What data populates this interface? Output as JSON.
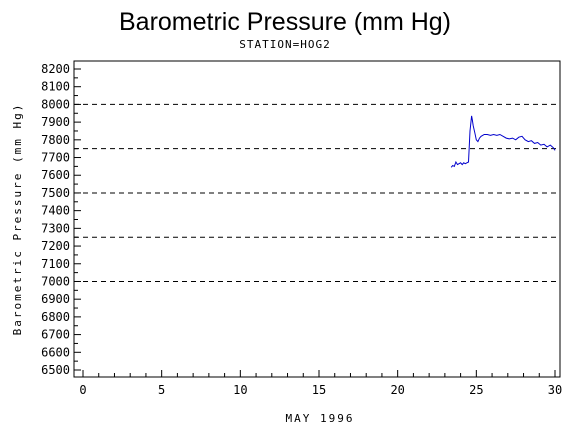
{
  "chart_data": {
    "type": "line",
    "title": "Barometric Pressure (mm Hg)",
    "subtitle": "STATION=HOG2",
    "xlabel": "MAY 1996",
    "ylabel": "Barometric Pressure (mm Hg)",
    "xlim": [
      0,
      30
    ],
    "ylim": [
      6500,
      8200
    ],
    "x_ticks": [
      0,
      5,
      10,
      15,
      20,
      25,
      30
    ],
    "y_ticks": [
      6500,
      6600,
      6700,
      6800,
      6900,
      7000,
      7100,
      7200,
      7300,
      7400,
      7500,
      7600,
      7700,
      7800,
      7900,
      8000,
      8100,
      8200
    ],
    "reference_lines": [
      7000,
      7250,
      7500,
      7750,
      8000
    ],
    "grid": false,
    "colors": {
      "series": "#0000cc",
      "axis": "#000000",
      "reference": "#000000"
    },
    "series": [
      {
        "x": [
          23.4,
          23.5,
          23.6,
          23.7,
          23.8,
          23.9,
          24.0,
          24.1,
          24.2,
          24.3,
          24.4,
          24.5,
          24.6,
          24.7,
          24.75,
          24.8,
          24.9,
          25.0,
          25.1,
          25.2,
          25.3,
          25.4,
          25.5,
          25.7,
          25.9,
          26.1,
          26.3,
          26.5,
          26.7,
          26.9,
          27.1,
          27.3,
          27.5,
          27.7,
          27.9,
          28.1,
          28.3,
          28.5,
          28.7,
          28.9,
          29.1,
          29.3,
          29.5,
          29.7,
          29.9,
          30.0
        ],
        "y": [
          7645,
          7655,
          7650,
          7675,
          7660,
          7665,
          7670,
          7660,
          7670,
          7665,
          7670,
          7675,
          7850,
          7935,
          7910,
          7880,
          7840,
          7800,
          7790,
          7810,
          7820,
          7825,
          7830,
          7830,
          7825,
          7830,
          7825,
          7830,
          7820,
          7810,
          7805,
          7810,
          7800,
          7815,
          7820,
          7800,
          7790,
          7795,
          7780,
          7785,
          7770,
          7775,
          7760,
          7770,
          7755,
          7740
        ]
      }
    ]
  }
}
